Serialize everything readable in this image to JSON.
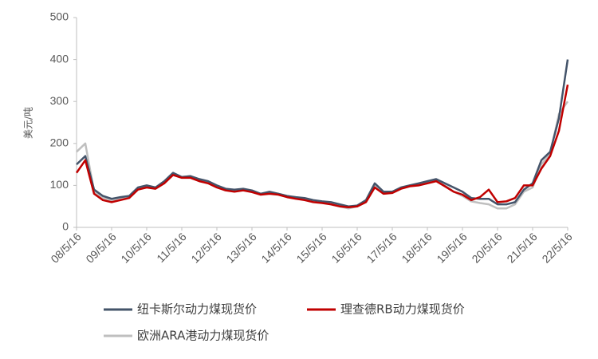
{
  "chart_data": {
    "type": "line",
    "y_label": "美元/吨",
    "x": [
      "08/5/16",
      "08/8/16",
      "08/11/16",
      "09/2/16",
      "09/5/16",
      "09/8/16",
      "09/11/16",
      "10/2/16",
      "10/5/16",
      "10/8/16",
      "10/11/16",
      "11/2/16",
      "11/5/16",
      "11/8/16",
      "11/11/16",
      "12/2/16",
      "12/5/16",
      "12/8/16",
      "12/11/16",
      "13/2/16",
      "13/5/16",
      "13/8/16",
      "13/11/16",
      "14/2/16",
      "14/5/16",
      "14/8/16",
      "14/11/16",
      "15/2/16",
      "15/5/16",
      "15/8/16",
      "15/11/16",
      "16/2/16",
      "16/5/16",
      "16/8/16",
      "16/11/16",
      "17/2/16",
      "17/5/16",
      "17/8/16",
      "17/11/16",
      "18/2/16",
      "18/5/16",
      "18/8/16",
      "18/11/16",
      "19/2/16",
      "19/5/16",
      "19/8/16",
      "19/11/16",
      "20/2/16",
      "20/5/16",
      "20/8/16",
      "20/11/16",
      "21/2/16",
      "21/5/16",
      "21/8/16",
      "21/11/16",
      "22/2/16",
      "22/5/16"
    ],
    "series": [
      {
        "name": "纽卡斯尔动力煤现货价",
        "color": "#44546a",
        "values": [
          150,
          170,
          90,
          75,
          68,
          72,
          75,
          95,
          100,
          95,
          110,
          130,
          120,
          122,
          115,
          110,
          100,
          92,
          90,
          92,
          88,
          80,
          85,
          80,
          75,
          72,
          70,
          65,
          62,
          60,
          55,
          50,
          52,
          65,
          105,
          85,
          85,
          95,
          100,
          105,
          110,
          115,
          105,
          95,
          85,
          70,
          68,
          68,
          55,
          55,
          60,
          90,
          105,
          160,
          180,
          260,
          400
        ]
      },
      {
        "name": "理查德RB动力煤现货价",
        "color": "#c00000",
        "values": [
          130,
          160,
          80,
          65,
          60,
          65,
          70,
          90,
          95,
          92,
          105,
          125,
          118,
          118,
          110,
          105,
          95,
          88,
          85,
          88,
          84,
          78,
          80,
          78,
          72,
          68,
          65,
          60,
          58,
          55,
          50,
          48,
          50,
          60,
          95,
          80,
          82,
          92,
          98,
          100,
          105,
          110,
          98,
          85,
          78,
          65,
          72,
          90,
          60,
          62,
          70,
          100,
          100,
          140,
          170,
          230,
          340
        ]
      },
      {
        "name": "欧洲ARA港动力煤现货价",
        "color": "#bfbfbf",
        "values": [
          180,
          200,
          85,
          70,
          65,
          68,
          72,
          92,
          98,
          95,
          108,
          128,
          120,
          122,
          112,
          108,
          98,
          90,
          88,
          90,
          85,
          80,
          82,
          80,
          75,
          70,
          68,
          62,
          60,
          55,
          50,
          45,
          50,
          62,
          100,
          82,
          84,
          95,
          100,
          102,
          108,
          112,
          100,
          85,
          75,
          62,
          58,
          55,
          45,
          45,
          55,
          85,
          95,
          150,
          175,
          270,
          300
        ]
      }
    ],
    "xlim": [
      "08/5/16",
      "22/5/16"
    ],
    "xticks": [
      "08/5/16",
      "09/5/16",
      "10/5/16",
      "11/5/16",
      "12/5/16",
      "13/5/16",
      "14/5/16",
      "15/5/16",
      "16/5/16",
      "17/5/16",
      "18/5/16",
      "19/5/16",
      "20/5/16",
      "21/5/16",
      "22/5/16"
    ],
    "ylim": [
      0,
      500
    ],
    "yticks": [
      0,
      100,
      200,
      300,
      400,
      500
    ]
  }
}
